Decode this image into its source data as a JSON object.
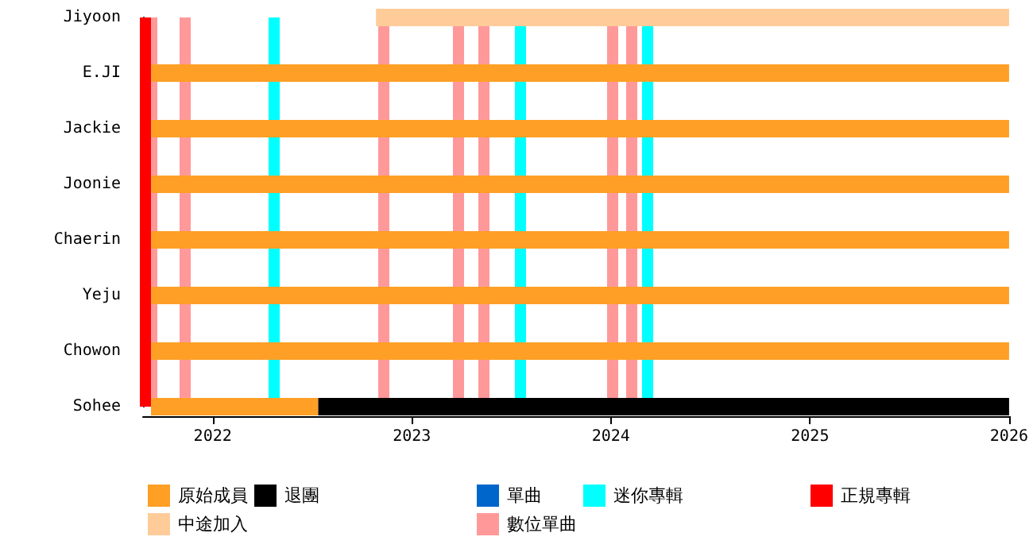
{
  "chart_data": {
    "type": "bar",
    "orientation": "horizontal",
    "categories": [
      "Jiyoon",
      "E.JI",
      "Jackie",
      "Joonie",
      "Chaerin",
      "Yeju",
      "Chowon",
      "Sohee"
    ],
    "series": [
      {
        "name": "原始成員",
        "color": "#ff9f26",
        "base": [
          null,
          2021.69,
          2021.69,
          2021.69,
          2021.69,
          2021.69,
          2021.69,
          2021.69
        ],
        "values": [
          null,
          4.31,
          4.31,
          4.31,
          4.31,
          4.31,
          4.31,
          0.84
        ]
      },
      {
        "name": "中途加入",
        "color": "#ffcc99",
        "base": [
          2022.82,
          null,
          null,
          null,
          null,
          null,
          null,
          null
        ],
        "values": [
          3.18,
          null,
          null,
          null,
          null,
          null,
          null,
          null
        ]
      },
      {
        "name": "退團",
        "color": "#000000",
        "base": [
          null,
          null,
          null,
          null,
          null,
          null,
          null,
          2022.53
        ],
        "values": [
          null,
          null,
          null,
          null,
          null,
          null,
          null,
          3.47
        ]
      },
      {
        "name": "單曲",
        "color": "#0066cc",
        "base": [
          null,
          null,
          null,
          null,
          null,
          null,
          null,
          null
        ],
        "values": [
          null,
          null,
          null,
          null,
          null,
          null,
          null,
          null
        ]
      }
    ],
    "ref_lines": [
      {
        "axis": "x",
        "value": 2021.69,
        "label": "數位單曲",
        "color": "#ff9999"
      },
      {
        "axis": "x",
        "value": 2021.86,
        "color": "#ff9999"
      },
      {
        "axis": "x",
        "value": 2022.86,
        "color": "#ff9999"
      },
      {
        "axis": "x",
        "value": 2023.23,
        "color": "#ff9999"
      },
      {
        "axis": "x",
        "value": 2023.36,
        "color": "#ff9999"
      },
      {
        "axis": "x",
        "value": 2024.01,
        "color": "#ff9999"
      },
      {
        "axis": "x",
        "value": 2024.1,
        "color": "#ff9999"
      },
      {
        "axis": "x",
        "value": 2022.31,
        "label": "迷你專輯",
        "color": "#00ffff"
      },
      {
        "axis": "x",
        "value": 2023.54,
        "color": "#00ffff"
      },
      {
        "axis": "x",
        "value": 2024.18,
        "color": "#00ffff"
      },
      {
        "axis": "x",
        "value": 2021.66,
        "label": "正規專輯",
        "color": "#ff0000"
      }
    ],
    "xlim": [
      2021.65,
      2026
    ],
    "xticks": [
      2022,
      2023,
      2024,
      2025,
      2026
    ],
    "grid": false,
    "legend": "bottom"
  }
}
